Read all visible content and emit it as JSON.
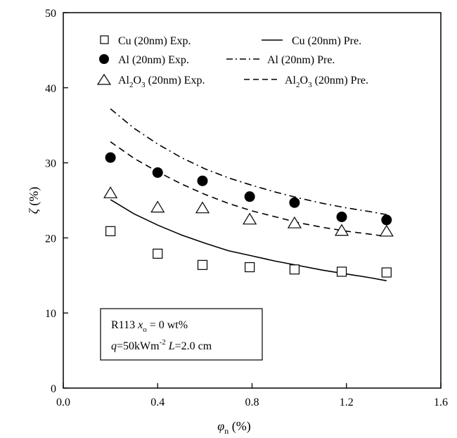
{
  "chart_data": {
    "type": "scatter",
    "xlabel": {
      "main": "φ",
      "sub": "n",
      "unit": " (%)"
    },
    "ylabel": {
      "main": "ζ",
      "unit": " (%)"
    },
    "xlim": [
      0.0,
      1.6
    ],
    "ylim": [
      0,
      50
    ],
    "xticks": [
      0.0,
      0.4,
      0.8,
      1.2,
      1.6
    ],
    "xtick_labels": [
      "0.0",
      "0.4",
      "0.8",
      "1.2",
      "1.6"
    ],
    "yticks": [
      0,
      10,
      20,
      30,
      40,
      50
    ],
    "ytick_labels": [
      "0",
      "10",
      "20",
      "30",
      "40",
      "50"
    ],
    "grid": false,
    "legend_position": "top",
    "series": [
      {
        "name": "Cu (20nm) Exp.",
        "kind": "marker",
        "marker": "open-square",
        "x": [
          0.2,
          0.4,
          0.59,
          0.79,
          0.98,
          1.18,
          1.37
        ],
        "y": [
          20.9,
          17.9,
          16.4,
          16.1,
          15.8,
          15.5,
          15.4
        ]
      },
      {
        "name": "Al (20nm) Exp.",
        "kind": "marker",
        "marker": "filled-circle",
        "x": [
          0.2,
          0.4,
          0.59,
          0.79,
          0.98,
          1.18,
          1.37
        ],
        "y": [
          30.7,
          28.7,
          27.6,
          25.5,
          24.7,
          22.8,
          22.4
        ]
      },
      {
        "name": "Al2O3 (20nm) Exp.",
        "kind": "marker",
        "marker": "open-triangle",
        "x": [
          0.2,
          0.4,
          0.59,
          0.79,
          0.98,
          1.18,
          1.37
        ],
        "y": [
          26.0,
          24.1,
          24.0,
          22.5,
          22.0,
          21.0,
          20.9
        ]
      },
      {
        "name": "Cu (20nm) Pre.",
        "kind": "line",
        "dash": "solid",
        "x": [
          0.2,
          0.3,
          0.4,
          0.5,
          0.6,
          0.7,
          0.8,
          0.9,
          1.0,
          1.1,
          1.2,
          1.3,
          1.37
        ],
        "y": [
          25.1,
          23.2,
          21.7,
          20.4,
          19.3,
          18.3,
          17.6,
          16.9,
          16.3,
          15.7,
          15.2,
          14.7,
          14.3
        ]
      },
      {
        "name": "Al (20nm) Pre.",
        "kind": "line",
        "dash": "dash-dot",
        "x": [
          0.2,
          0.3,
          0.4,
          0.5,
          0.6,
          0.7,
          0.8,
          0.9,
          1.0,
          1.1,
          1.2,
          1.3,
          1.37
        ],
        "y": [
          37.2,
          34.6,
          32.5,
          30.7,
          29.2,
          28.0,
          27.0,
          26.1,
          25.3,
          24.6,
          24.0,
          23.5,
          23.1
        ]
      },
      {
        "name": "Al2O3 (20nm) Pre.",
        "kind": "line",
        "dash": "dashed",
        "x": [
          0.2,
          0.3,
          0.4,
          0.5,
          0.6,
          0.7,
          0.8,
          0.9,
          1.0,
          1.1,
          1.2,
          1.3,
          1.37
        ],
        "y": [
          32.8,
          30.6,
          28.8,
          27.2,
          25.8,
          24.6,
          23.6,
          22.8,
          22.0,
          21.4,
          20.9,
          20.5,
          20.2
        ]
      }
    ],
    "legend": [
      {
        "marker": "open-square",
        "label_main": "Cu (20nm) Exp."
      },
      {
        "line": "solid",
        "label_main": "Cu (20nm) Pre."
      },
      {
        "marker": "filled-circle",
        "label_main": "Al (20nm) Exp."
      },
      {
        "line": "dash-dot",
        "label_main": "Al (20nm) Pre."
      },
      {
        "marker": "open-triangle",
        "label_parts": [
          "Al",
          "2",
          "O",
          "3",
          " (20nm) Exp."
        ]
      },
      {
        "line": "dashed",
        "label_parts": [
          "Al",
          "2",
          "O",
          "3",
          " (20nm) Pre."
        ]
      }
    ],
    "annotation": {
      "line1_a": "R113  ",
      "line1_x": "x",
      "line1_sub": "o",
      "line1_b": " = 0 wt%",
      "line2_q": "q",
      "line2_a": "=50kWm",
      "line2_sup": "-2",
      "line2_L": " L",
      "line2_b": "=2.0 cm"
    }
  }
}
